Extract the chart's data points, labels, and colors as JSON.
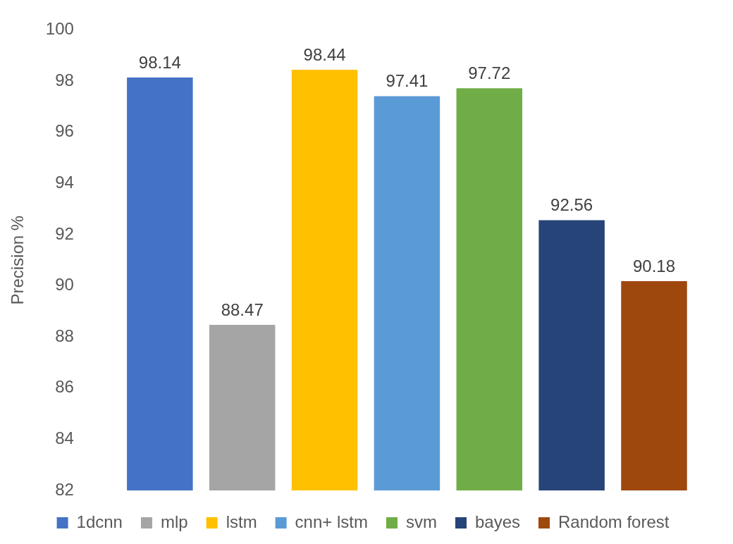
{
  "chart_data": {
    "type": "bar",
    "ylabel": "Precision %",
    "categories": [
      null
    ],
    "series": [
      {
        "name": "1dcnn",
        "color": "#4472c4",
        "values": [
          98.14
        ]
      },
      {
        "name": "mlp",
        "color": "#a5a5a5",
        "values": [
          88.47
        ]
      },
      {
        "name": "lstm",
        "color": "#ffc000",
        "values": [
          98.44
        ]
      },
      {
        "name": "cnn+ lstm",
        "color": "#5b9bd5",
        "values": [
          97.41
        ]
      },
      {
        "name": "svm",
        "color": "#70ad47",
        "values": [
          97.72
        ]
      },
      {
        "name": "bayes",
        "color": "#264478",
        "values": [
          92.56
        ]
      },
      {
        "name": "Random forest",
        "color": "#9e480e",
        "values": [
          90.18
        ]
      }
    ],
    "ylim": [
      82,
      100
    ],
    "yticks": [
      82,
      84,
      86,
      88,
      90,
      92,
      94,
      96,
      98,
      100
    ],
    "grid": false,
    "legend": "bottom",
    "tick_labels": "y",
    "data_labels": true
  }
}
